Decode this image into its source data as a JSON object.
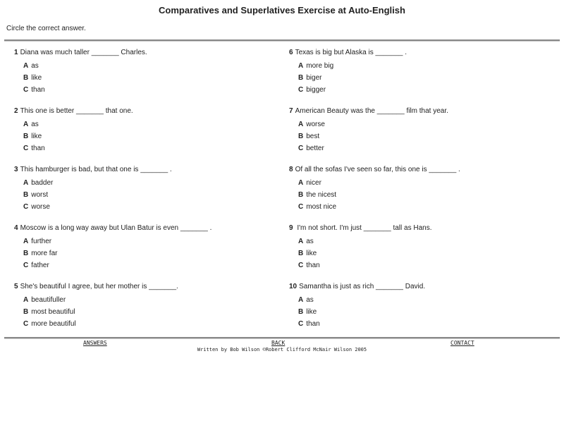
{
  "title": "Comparatives and Superlatives Exercise at Auto-English",
  "instruction": "Circle the correct answer.",
  "questions": [
    {
      "num": "1",
      "text": "Diana was much taller _______ Charles.",
      "options": [
        {
          "letter": "A",
          "text": "as"
        },
        {
          "letter": "B",
          "text": "like"
        },
        {
          "letter": "C",
          "text": "than"
        }
      ]
    },
    {
      "num": "2",
      "text": "This one is better _______ that one.",
      "options": [
        {
          "letter": "A",
          "text": "as"
        },
        {
          "letter": "B",
          "text": "like"
        },
        {
          "letter": "C",
          "text": "than"
        }
      ]
    },
    {
      "num": "3",
      "text": "This hamburger is bad, but that one is _______ .",
      "options": [
        {
          "letter": "A",
          "text": "badder"
        },
        {
          "letter": "B",
          "text": "worst"
        },
        {
          "letter": "C",
          "text": "worse"
        }
      ]
    },
    {
      "num": "4",
      "text": "Moscow is a long way away but Ulan Batur is even _______ .",
      "options": [
        {
          "letter": "A",
          "text": "further"
        },
        {
          "letter": "B",
          "text": "more far"
        },
        {
          "letter": "C",
          "text": "father"
        }
      ]
    },
    {
      "num": "5",
      "text": "She's beautiful I agree, but her mother is _______.",
      "options": [
        {
          "letter": "A",
          "text": "beautifuller"
        },
        {
          "letter": "B",
          "text": "most beautiful"
        },
        {
          "letter": "C",
          "text": "more beautiful"
        }
      ]
    },
    {
      "num": "6",
      "text": "Texas is big but Alaska is _______ .",
      "options": [
        {
          "letter": "A",
          "text": "more big"
        },
        {
          "letter": "B",
          "text": "biger"
        },
        {
          "letter": "C",
          "text": "bigger"
        }
      ]
    },
    {
      "num": "7",
      "text": "American Beauty was the _______ film that year.",
      "options": [
        {
          "letter": "A",
          "text": "worse"
        },
        {
          "letter": "B",
          "text": "best"
        },
        {
          "letter": "C",
          "text": "better"
        }
      ]
    },
    {
      "num": "8",
      "text": "Of all the sofas I've seen so far, this one is _______ .",
      "options": [
        {
          "letter": "A",
          "text": "nicer"
        },
        {
          "letter": "B",
          "text": "the nicest"
        },
        {
          "letter": "C",
          "text": "most nice"
        }
      ]
    },
    {
      "num": "9",
      "text": " I'm not short. I'm just _______ tall as Hans.",
      "options": [
        {
          "letter": "A",
          "text": "as"
        },
        {
          "letter": "B",
          "text": "like"
        },
        {
          "letter": "C",
          "text": "than"
        }
      ]
    },
    {
      "num": "10",
      "text": "Samantha is just as rich _______ David.",
      "options": [
        {
          "letter": "A",
          "text": "as"
        },
        {
          "letter": "B",
          "text": "like"
        },
        {
          "letter": "C",
          "text": "than"
        }
      ]
    }
  ],
  "footer": {
    "answers": "ANSWERS",
    "back": "BACK",
    "contact": "CONTACT",
    "credit": "Written by Bob Wilson ©Robert Clifford McNair Wilson 2005"
  }
}
